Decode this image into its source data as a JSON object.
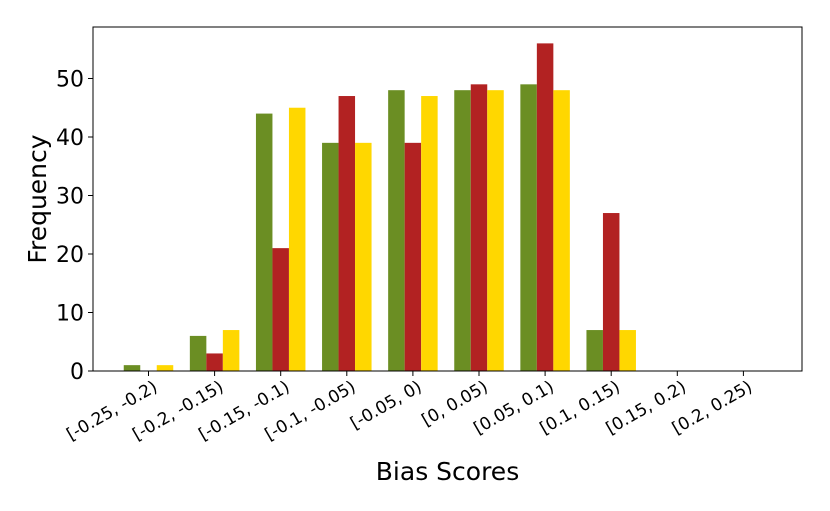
{
  "chart_data": {
    "type": "bar",
    "title": "",
    "xlabel": "Bias Scores",
    "ylabel": "Frequency",
    "categories": [
      "[-0.25, -0.2)",
      "[-0.2, -0.15)",
      "[-0.15, -0.1)",
      "[-0.1, -0.05)",
      "[-0.05, 0)",
      "[0, 0.05)",
      "[0.05, 0.1)",
      "[0.1, 0.15)",
      "[0.15, 0.2)",
      "[0.2, 0.25)"
    ],
    "series": [
      {
        "color": "#6b8e23",
        "values": [
          1,
          6,
          44,
          39,
          48,
          48,
          49,
          7,
          0,
          0
        ]
      },
      {
        "color": "#b22222",
        "values": [
          0,
          3,
          21,
          47,
          39,
          49,
          56,
          27,
          0,
          0
        ]
      },
      {
        "color": "#ffd700",
        "values": [
          1,
          7,
          45,
          39,
          47,
          48,
          48,
          7,
          0,
          0
        ]
      }
    ],
    "yticks": [
      0,
      10,
      20,
      30,
      40,
      50
    ],
    "ylim": [
      0,
      58.8
    ],
    "grid": false,
    "legend": "none"
  }
}
